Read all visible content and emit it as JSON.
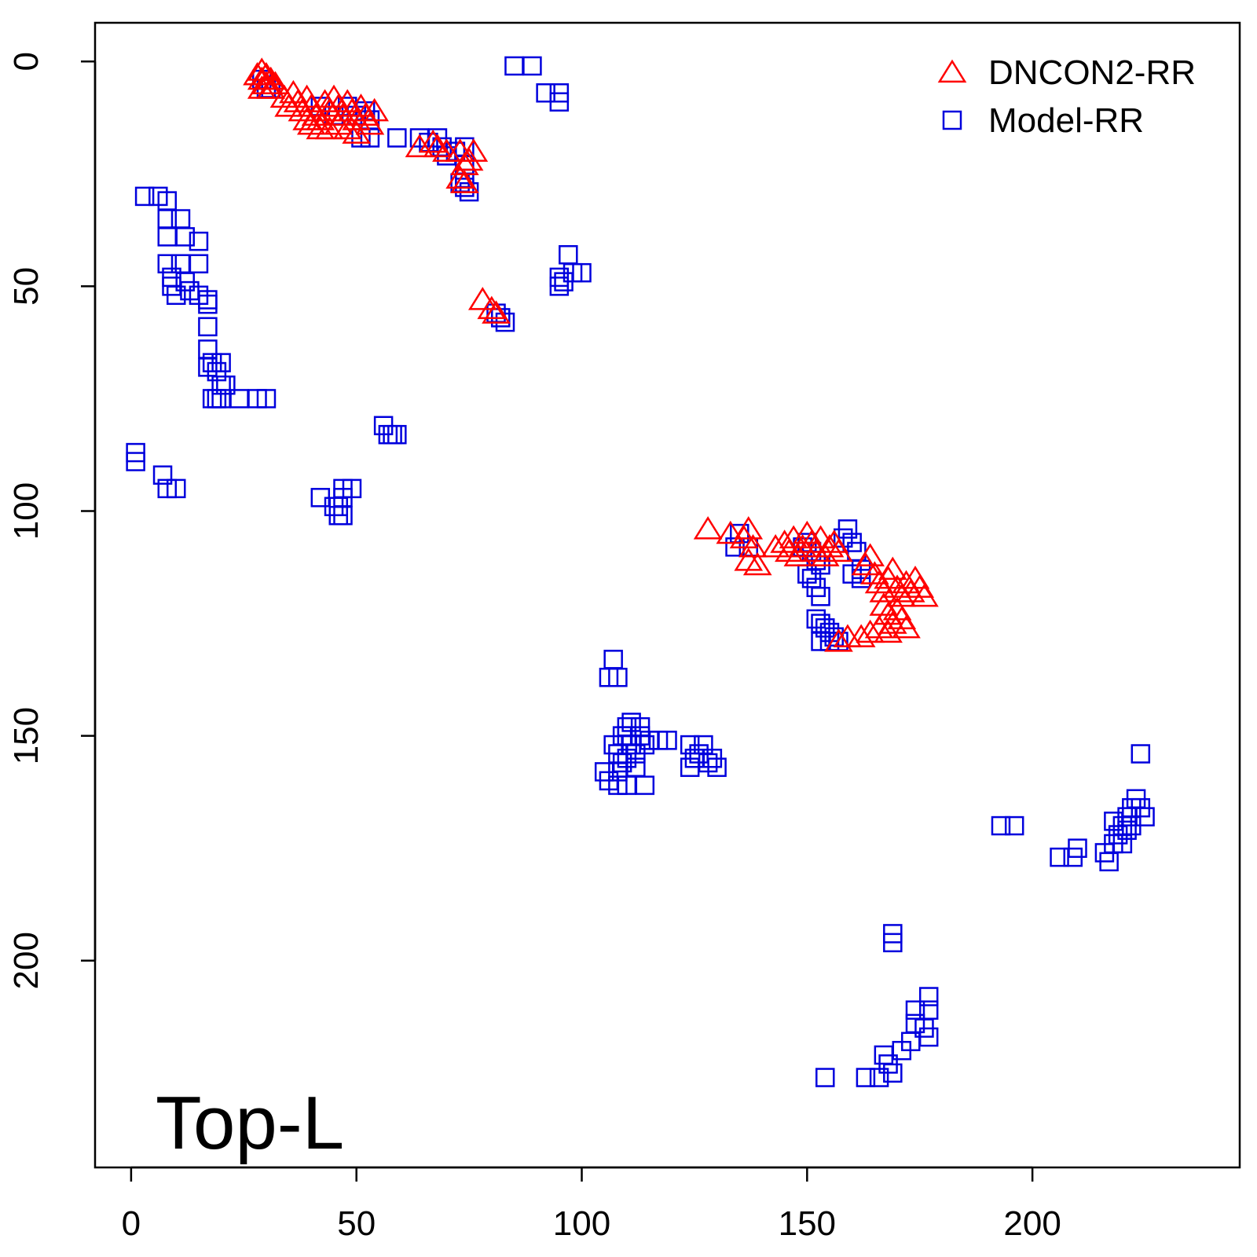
{
  "chart_data": {
    "type": "scatter",
    "title": "",
    "xlabel": "",
    "ylabel": "",
    "xlim": [
      -8,
      246
    ],
    "ylim": [
      -8.6,
      246
    ],
    "y_reversed": true,
    "xticks": [
      0,
      50,
      100,
      150,
      200
    ],
    "yticks": [
      0,
      50,
      100,
      150,
      200
    ],
    "grid": false,
    "legend_position": "top-right",
    "annotation": "Top-L",
    "series": [
      {
        "name": "DNCON2-RR",
        "marker": "triangle",
        "color": "#ff0000",
        "points": [
          [
            28,
            3
          ],
          [
            29,
            2
          ],
          [
            29,
            4
          ],
          [
            30,
            3
          ],
          [
            30,
            5
          ],
          [
            31,
            4
          ],
          [
            29,
            6
          ],
          [
            31,
            6
          ],
          [
            32,
            5
          ],
          [
            34,
            8
          ],
          [
            35,
            10
          ],
          [
            36,
            7
          ],
          [
            37,
            9
          ],
          [
            38,
            11
          ],
          [
            39,
            8
          ],
          [
            40,
            10
          ],
          [
            41,
            12
          ],
          [
            39,
            13
          ],
          [
            40,
            14
          ],
          [
            42,
            15
          ],
          [
            43,
            9
          ],
          [
            44,
            11
          ],
          [
            45,
            8
          ],
          [
            46,
            10
          ],
          [
            47,
            12
          ],
          [
            48,
            9
          ],
          [
            49,
            11
          ],
          [
            50,
            13
          ],
          [
            51,
            10
          ],
          [
            52,
            12
          ],
          [
            53,
            14
          ],
          [
            54,
            11
          ],
          [
            46,
            14
          ],
          [
            48,
            15
          ],
          [
            50,
            16
          ],
          [
            44,
            15
          ],
          [
            42,
            13
          ],
          [
            64,
            19
          ],
          [
            67,
            18
          ],
          [
            68,
            19
          ],
          [
            70,
            20
          ],
          [
            73,
            20
          ],
          [
            74,
            23
          ],
          [
            75,
            22
          ],
          [
            76,
            20
          ],
          [
            74,
            27
          ],
          [
            73,
            26
          ],
          [
            78,
            53
          ],
          [
            80,
            55
          ],
          [
            81,
            56
          ],
          [
            128,
            104
          ],
          [
            133,
            105
          ],
          [
            136,
            106
          ],
          [
            137,
            104
          ],
          [
            138,
            108
          ],
          [
            137,
            111
          ],
          [
            139,
            112
          ],
          [
            143,
            108
          ],
          [
            145,
            107
          ],
          [
            146,
            109
          ],
          [
            147,
            106
          ],
          [
            148,
            110
          ],
          [
            149,
            108
          ],
          [
            150,
            105
          ],
          [
            151,
            107
          ],
          [
            152,
            109
          ],
          [
            153,
            106
          ],
          [
            154,
            110
          ],
          [
            155,
            108
          ],
          [
            156,
            107
          ],
          [
            157,
            109
          ],
          [
            163,
            112
          ],
          [
            164,
            110
          ],
          [
            165,
            114
          ],
          [
            166,
            116
          ],
          [
            167,
            118
          ],
          [
            168,
            115
          ],
          [
            169,
            113
          ],
          [
            170,
            117
          ],
          [
            171,
            119
          ],
          [
            172,
            116
          ],
          [
            173,
            118
          ],
          [
            174,
            115
          ],
          [
            175,
            117
          ],
          [
            176,
            119
          ],
          [
            167,
            121
          ],
          [
            168,
            123
          ],
          [
            169,
            125
          ],
          [
            170,
            122
          ],
          [
            171,
            124
          ],
          [
            172,
            126
          ],
          [
            166,
            126
          ],
          [
            164,
            127
          ],
          [
            162,
            128
          ],
          [
            159,
            128
          ],
          [
            157,
            129
          ],
          [
            168,
            127
          ]
        ]
      },
      {
        "name": "Model-RR",
        "marker": "square",
        "color": "#0000dd",
        "points": [
          [
            85,
            1
          ],
          [
            89,
            1
          ],
          [
            92,
            7
          ],
          [
            95,
            7
          ],
          [
            95,
            9
          ],
          [
            29,
            4
          ],
          [
            30,
            6
          ],
          [
            31,
            6
          ],
          [
            42,
            10
          ],
          [
            45,
            12
          ],
          [
            48,
            10
          ],
          [
            50,
            12
          ],
          [
            52,
            11
          ],
          [
            53,
            13
          ],
          [
            51,
            17
          ],
          [
            53,
            17
          ],
          [
            59,
            17
          ],
          [
            64,
            17
          ],
          [
            66,
            18
          ],
          [
            68,
            17
          ],
          [
            69,
            19
          ],
          [
            70,
            21
          ],
          [
            72,
            20
          ],
          [
            74,
            19
          ],
          [
            74,
            23
          ],
          [
            74,
            26
          ],
          [
            74,
            28
          ],
          [
            75,
            29
          ],
          [
            73,
            27
          ],
          [
            3,
            30
          ],
          [
            6,
            30
          ],
          [
            8,
            31
          ],
          [
            8,
            35
          ],
          [
            8,
            39
          ],
          [
            11,
            35
          ],
          [
            12,
            39
          ],
          [
            15,
            40
          ],
          [
            8,
            45
          ],
          [
            11,
            45
          ],
          [
            15,
            45
          ],
          [
            9,
            48
          ],
          [
            9,
            50
          ],
          [
            10,
            52
          ],
          [
            12,
            49
          ],
          [
            13,
            51
          ],
          [
            15,
            52
          ],
          [
            17,
            53
          ],
          [
            17,
            54
          ],
          [
            17,
            59
          ],
          [
            17,
            64
          ],
          [
            17,
            68
          ],
          [
            18,
            67
          ],
          [
            19,
            69
          ],
          [
            20,
            67
          ],
          [
            20,
            72
          ],
          [
            21,
            72
          ],
          [
            19,
            75
          ],
          [
            18,
            75
          ],
          [
            20,
            75
          ],
          [
            24,
            75
          ],
          [
            28,
            75
          ],
          [
            30,
            75
          ],
          [
            56,
            81
          ],
          [
            57,
            83
          ],
          [
            58,
            83
          ],
          [
            59,
            83
          ],
          [
            1,
            87
          ],
          [
            1,
            89
          ],
          [
            7,
            92
          ],
          [
            8,
            95
          ],
          [
            10,
            95
          ],
          [
            42,
            97
          ],
          [
            45,
            99
          ],
          [
            46,
            99
          ],
          [
            47,
            97
          ],
          [
            47,
            95
          ],
          [
            49,
            95
          ],
          [
            46,
            101
          ],
          [
            47,
            101
          ],
          [
            97,
            43
          ],
          [
            98,
            47
          ],
          [
            100,
            47
          ],
          [
            95,
            48
          ],
          [
            96,
            49
          ],
          [
            95,
            50
          ],
          [
            81,
            56
          ],
          [
            82,
            57
          ],
          [
            83,
            58
          ],
          [
            135,
            105
          ],
          [
            137,
            108
          ],
          [
            134,
            108
          ],
          [
            149,
            108
          ],
          [
            150,
            107
          ],
          [
            151,
            109
          ],
          [
            152,
            111
          ],
          [
            153,
            112
          ],
          [
            150,
            114
          ],
          [
            151,
            115
          ],
          [
            152,
            117
          ],
          [
            153,
            119
          ],
          [
            152,
            124
          ],
          [
            153,
            125
          ],
          [
            154,
            126
          ],
          [
            155,
            127
          ],
          [
            156,
            128
          ],
          [
            157,
            129
          ],
          [
            153,
            129
          ],
          [
            155,
            129
          ],
          [
            158,
            106
          ],
          [
            159,
            104
          ],
          [
            160,
            107
          ],
          [
            161,
            109
          ],
          [
            162,
            113
          ],
          [
            162,
            115
          ],
          [
            160,
            114
          ],
          [
            107,
            133
          ],
          [
            108,
            137
          ],
          [
            106,
            137
          ],
          [
            105,
            158
          ],
          [
            106,
            160
          ],
          [
            108,
            161
          ],
          [
            110,
            161
          ],
          [
            114,
            161
          ],
          [
            107,
            152
          ],
          [
            108,
            154
          ],
          [
            109,
            156
          ],
          [
            110,
            150
          ],
          [
            111,
            152
          ],
          [
            112,
            154
          ],
          [
            113,
            150
          ],
          [
            114,
            152
          ],
          [
            115,
            151
          ],
          [
            117,
            151
          ],
          [
            119,
            151
          ],
          [
            109,
            150
          ],
          [
            110,
            148
          ],
          [
            111,
            147
          ],
          [
            113,
            148
          ],
          [
            110,
            155
          ],
          [
            112,
            157
          ],
          [
            108,
            158
          ],
          [
            124,
            152
          ],
          [
            125,
            155
          ],
          [
            126,
            154
          ],
          [
            127,
            152
          ],
          [
            128,
            156
          ],
          [
            129,
            155
          ],
          [
            130,
            157
          ],
          [
            124,
            157
          ],
          [
            224,
            154
          ],
          [
            193,
            170
          ],
          [
            196,
            170
          ],
          [
            206,
            177
          ],
          [
            209,
            177
          ],
          [
            210,
            175
          ],
          [
            216,
            176
          ],
          [
            217,
            178
          ],
          [
            218,
            174
          ],
          [
            219,
            172
          ],
          [
            220,
            170
          ],
          [
            221,
            168
          ],
          [
            222,
            166
          ],
          [
            223,
            164
          ],
          [
            224,
            166
          ],
          [
            225,
            168
          ],
          [
            222,
            170
          ],
          [
            220,
            174
          ],
          [
            221,
            171
          ],
          [
            218,
            169
          ],
          [
            169,
            194
          ],
          [
            169,
            196
          ],
          [
            177,
            208
          ],
          [
            177,
            211
          ],
          [
            174,
            211
          ],
          [
            174,
            214
          ],
          [
            176,
            215
          ],
          [
            177,
            217
          ],
          [
            173,
            218
          ],
          [
            171,
            220
          ],
          [
            167,
            221
          ],
          [
            168,
            223
          ],
          [
            169,
            225
          ],
          [
            166,
            226
          ],
          [
            163,
            226
          ],
          [
            154,
            226
          ]
        ]
      }
    ]
  }
}
